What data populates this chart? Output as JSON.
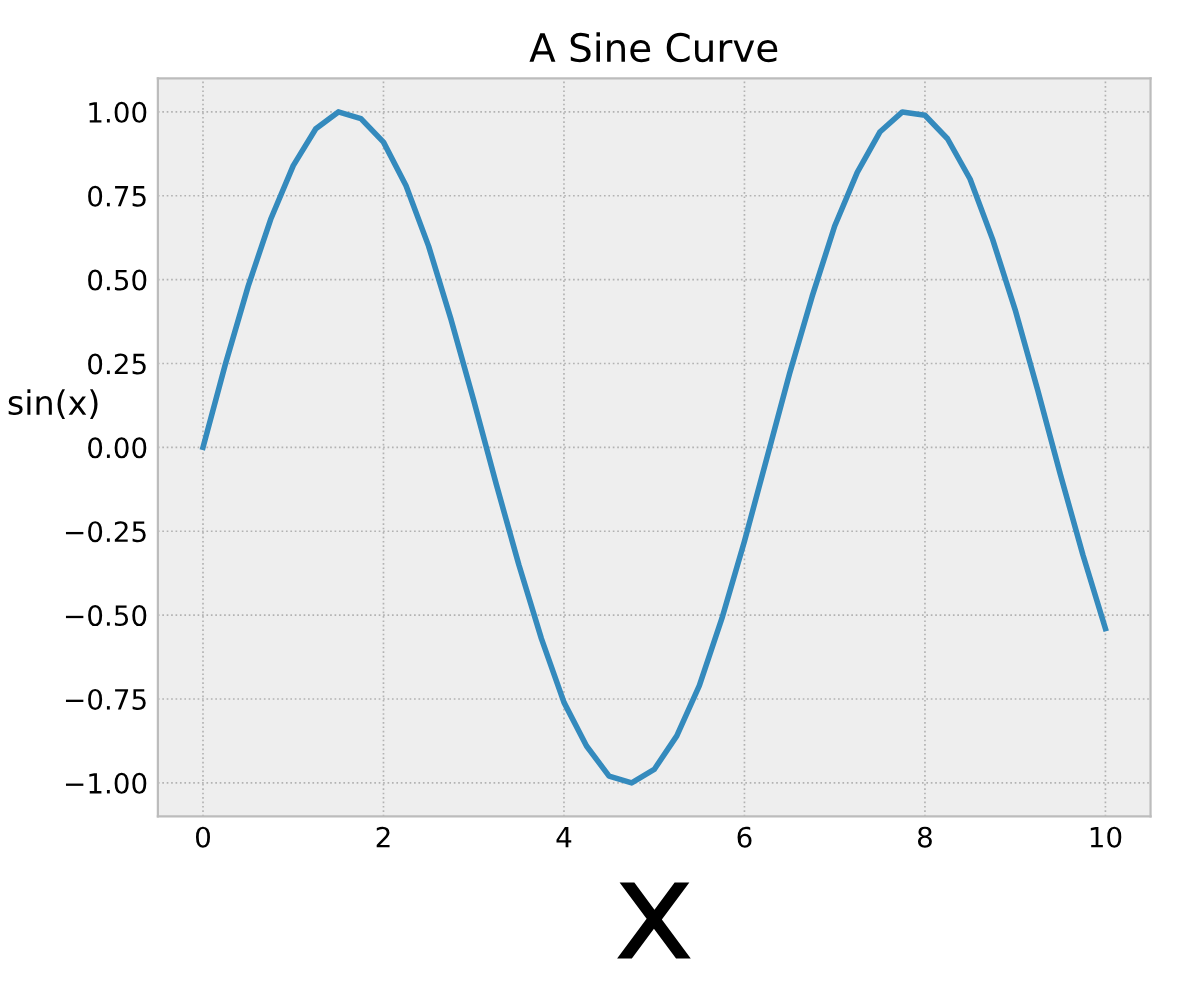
{
  "chart_data": {
    "type": "line",
    "title": "A Sine Curve",
    "xlabel": "x",
    "ylabel": "sin(x)",
    "series": [
      {
        "color": "#348abd",
        "x": [
          0,
          0.25,
          0.5,
          0.75,
          1,
          1.25,
          1.5,
          1.75,
          2,
          2.25,
          2.5,
          2.75,
          3,
          3.25,
          3.5,
          3.75,
          4,
          4.25,
          4.5,
          4.75,
          5,
          5.25,
          5.5,
          5.75,
          6,
          6.25,
          6.5,
          6.75,
          7,
          7.25,
          7.5,
          7.75,
          8,
          8.25,
          8.5,
          8.75,
          9,
          9.25,
          9.5,
          9.75,
          10
        ],
        "values": [
          0,
          0.25,
          0.48,
          0.68,
          0.84,
          0.95,
          1.0,
          0.98,
          0.91,
          0.78,
          0.6,
          0.38,
          0.14,
          -0.11,
          -0.35,
          -0.57,
          -0.76,
          -0.89,
          -0.98,
          -1.0,
          -0.96,
          -0.86,
          -0.71,
          -0.51,
          -0.28,
          -0.03,
          0.22,
          0.45,
          0.66,
          0.82,
          0.94,
          1.0,
          0.99,
          0.92,
          0.8,
          0.62,
          0.41,
          0.17,
          -0.08,
          -0.32,
          -0.54
        ]
      }
    ],
    "xlim": [
      -0.5,
      10.5
    ],
    "ylim": [
      -1.1,
      1.1
    ],
    "xticks": [
      0,
      2,
      4,
      6,
      8,
      10
    ],
    "yticks": [
      {
        "value": -1.0,
        "label": "−1.00"
      },
      {
        "value": -0.75,
        "label": "−0.75"
      },
      {
        "value": -0.5,
        "label": "−0.50"
      },
      {
        "value": -0.25,
        "label": "−0.25"
      },
      {
        "value": 0.0,
        "label": "0.00"
      },
      {
        "value": 0.25,
        "label": "0.25"
      },
      {
        "value": 0.5,
        "label": "0.50"
      },
      {
        "value": 0.75,
        "label": "0.75"
      },
      {
        "value": 1.0,
        "label": "1.00"
      }
    ],
    "grid": true,
    "marker": "none",
    "line_style": "solid"
  }
}
